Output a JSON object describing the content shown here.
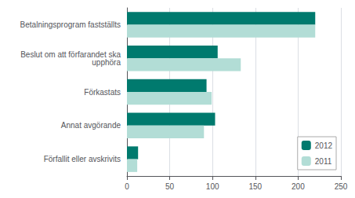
{
  "chart_data": {
    "type": "bar",
    "orientation": "horizontal",
    "categories": [
      "Förfallit eller avskrivits",
      "Annat avgörande",
      "Förkastats",
      "Beslut om att förfarandet ska\nupphöra",
      "Betalningsprogram fastställts"
    ],
    "series": [
      {
        "name": "2012",
        "color": "#007a6e",
        "values": [
          13,
          103,
          93,
          106,
          220
        ]
      },
      {
        "name": "2011",
        "color": "#b2ddd6",
        "values": [
          12,
          90,
          99,
          133,
          220
        ]
      }
    ],
    "xlim": [
      0,
      250
    ],
    "xticks": [
      0,
      50,
      100,
      150,
      200,
      250
    ],
    "grid": true,
    "legend": "lower right"
  }
}
